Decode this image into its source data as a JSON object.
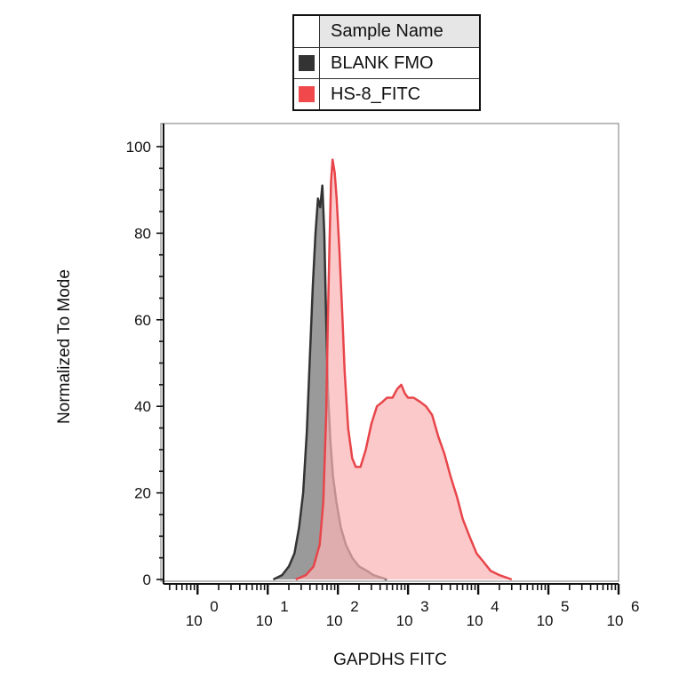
{
  "legend": {
    "header": "Sample Name",
    "entries": [
      {
        "label": "BLANK FMO",
        "color": "#333333"
      },
      {
        "label": "HS-8_FITC",
        "color": "#f0484b"
      }
    ]
  },
  "chart_data": {
    "type": "area",
    "xlabel": "GAPDHS FITC",
    "ylabel": "Normalized To Mode",
    "x_scale": "log",
    "xlim": [
      0.3,
      1000000
    ],
    "ylim": [
      0,
      100
    ],
    "x_ticks": [
      {
        "base": "10",
        "exp": "0",
        "value": 1
      },
      {
        "base": "10",
        "exp": "1",
        "value": 10
      },
      {
        "base": "10",
        "exp": "2",
        "value": 100
      },
      {
        "base": "10",
        "exp": "3",
        "value": 1000
      },
      {
        "base": "10",
        "exp": "4",
        "value": 10000
      },
      {
        "base": "10",
        "exp": "5",
        "value": 100000
      },
      {
        "base": "10",
        "exp": "6",
        "value": 1000000
      }
    ],
    "y_ticks": [
      0,
      20,
      40,
      60,
      80,
      100
    ],
    "series": [
      {
        "name": "BLANK FMO",
        "color": "#333333",
        "fill": "#9a9a9a",
        "points": [
          [
            12,
            0
          ],
          [
            16,
            1
          ],
          [
            20,
            3
          ],
          [
            24,
            6
          ],
          [
            28,
            12
          ],
          [
            32,
            20
          ],
          [
            36,
            34
          ],
          [
            40,
            52
          ],
          [
            44,
            68
          ],
          [
            48,
            80
          ],
          [
            52,
            88
          ],
          [
            56,
            86
          ],
          [
            60,
            91
          ],
          [
            64,
            80
          ],
          [
            68,
            60
          ],
          [
            72,
            44
          ],
          [
            78,
            32
          ],
          [
            85,
            24
          ],
          [
            95,
            18
          ],
          [
            110,
            12
          ],
          [
            130,
            8
          ],
          [
            160,
            5
          ],
          [
            200,
            3
          ],
          [
            260,
            2
          ],
          [
            320,
            1
          ],
          [
            400,
            0.5
          ],
          [
            500,
            0
          ]
        ]
      },
      {
        "name": "HS-8_FITC",
        "color": "#e8454a",
        "fill": "#f9b4b5",
        "points": [
          [
            25,
            0
          ],
          [
            35,
            1
          ],
          [
            45,
            3
          ],
          [
            55,
            8
          ],
          [
            62,
            18
          ],
          [
            68,
            38
          ],
          [
            72,
            60
          ],
          [
            76,
            78
          ],
          [
            80,
            92
          ],
          [
            84,
            97
          ],
          [
            90,
            94
          ],
          [
            96,
            88
          ],
          [
            105,
            76
          ],
          [
            115,
            62
          ],
          [
            125,
            48
          ],
          [
            140,
            35
          ],
          [
            160,
            28
          ],
          [
            180,
            26
          ],
          [
            210,
            26
          ],
          [
            250,
            30
          ],
          [
            300,
            36
          ],
          [
            360,
            40
          ],
          [
            430,
            41
          ],
          [
            500,
            42
          ],
          [
            600,
            42
          ],
          [
            700,
            44
          ],
          [
            800,
            45
          ],
          [
            900,
            43
          ],
          [
            1000,
            42
          ],
          [
            1200,
            42
          ],
          [
            1500,
            41
          ],
          [
            1800,
            40
          ],
          [
            2200,
            38
          ],
          [
            2700,
            33
          ],
          [
            3300,
            29
          ],
          [
            4000,
            24
          ],
          [
            5000,
            19
          ],
          [
            6000,
            14
          ],
          [
            7500,
            10
          ],
          [
            9500,
            6
          ],
          [
            12000,
            4
          ],
          [
            15000,
            2
          ],
          [
            20000,
            1
          ],
          [
            30000,
            0
          ]
        ]
      }
    ]
  }
}
